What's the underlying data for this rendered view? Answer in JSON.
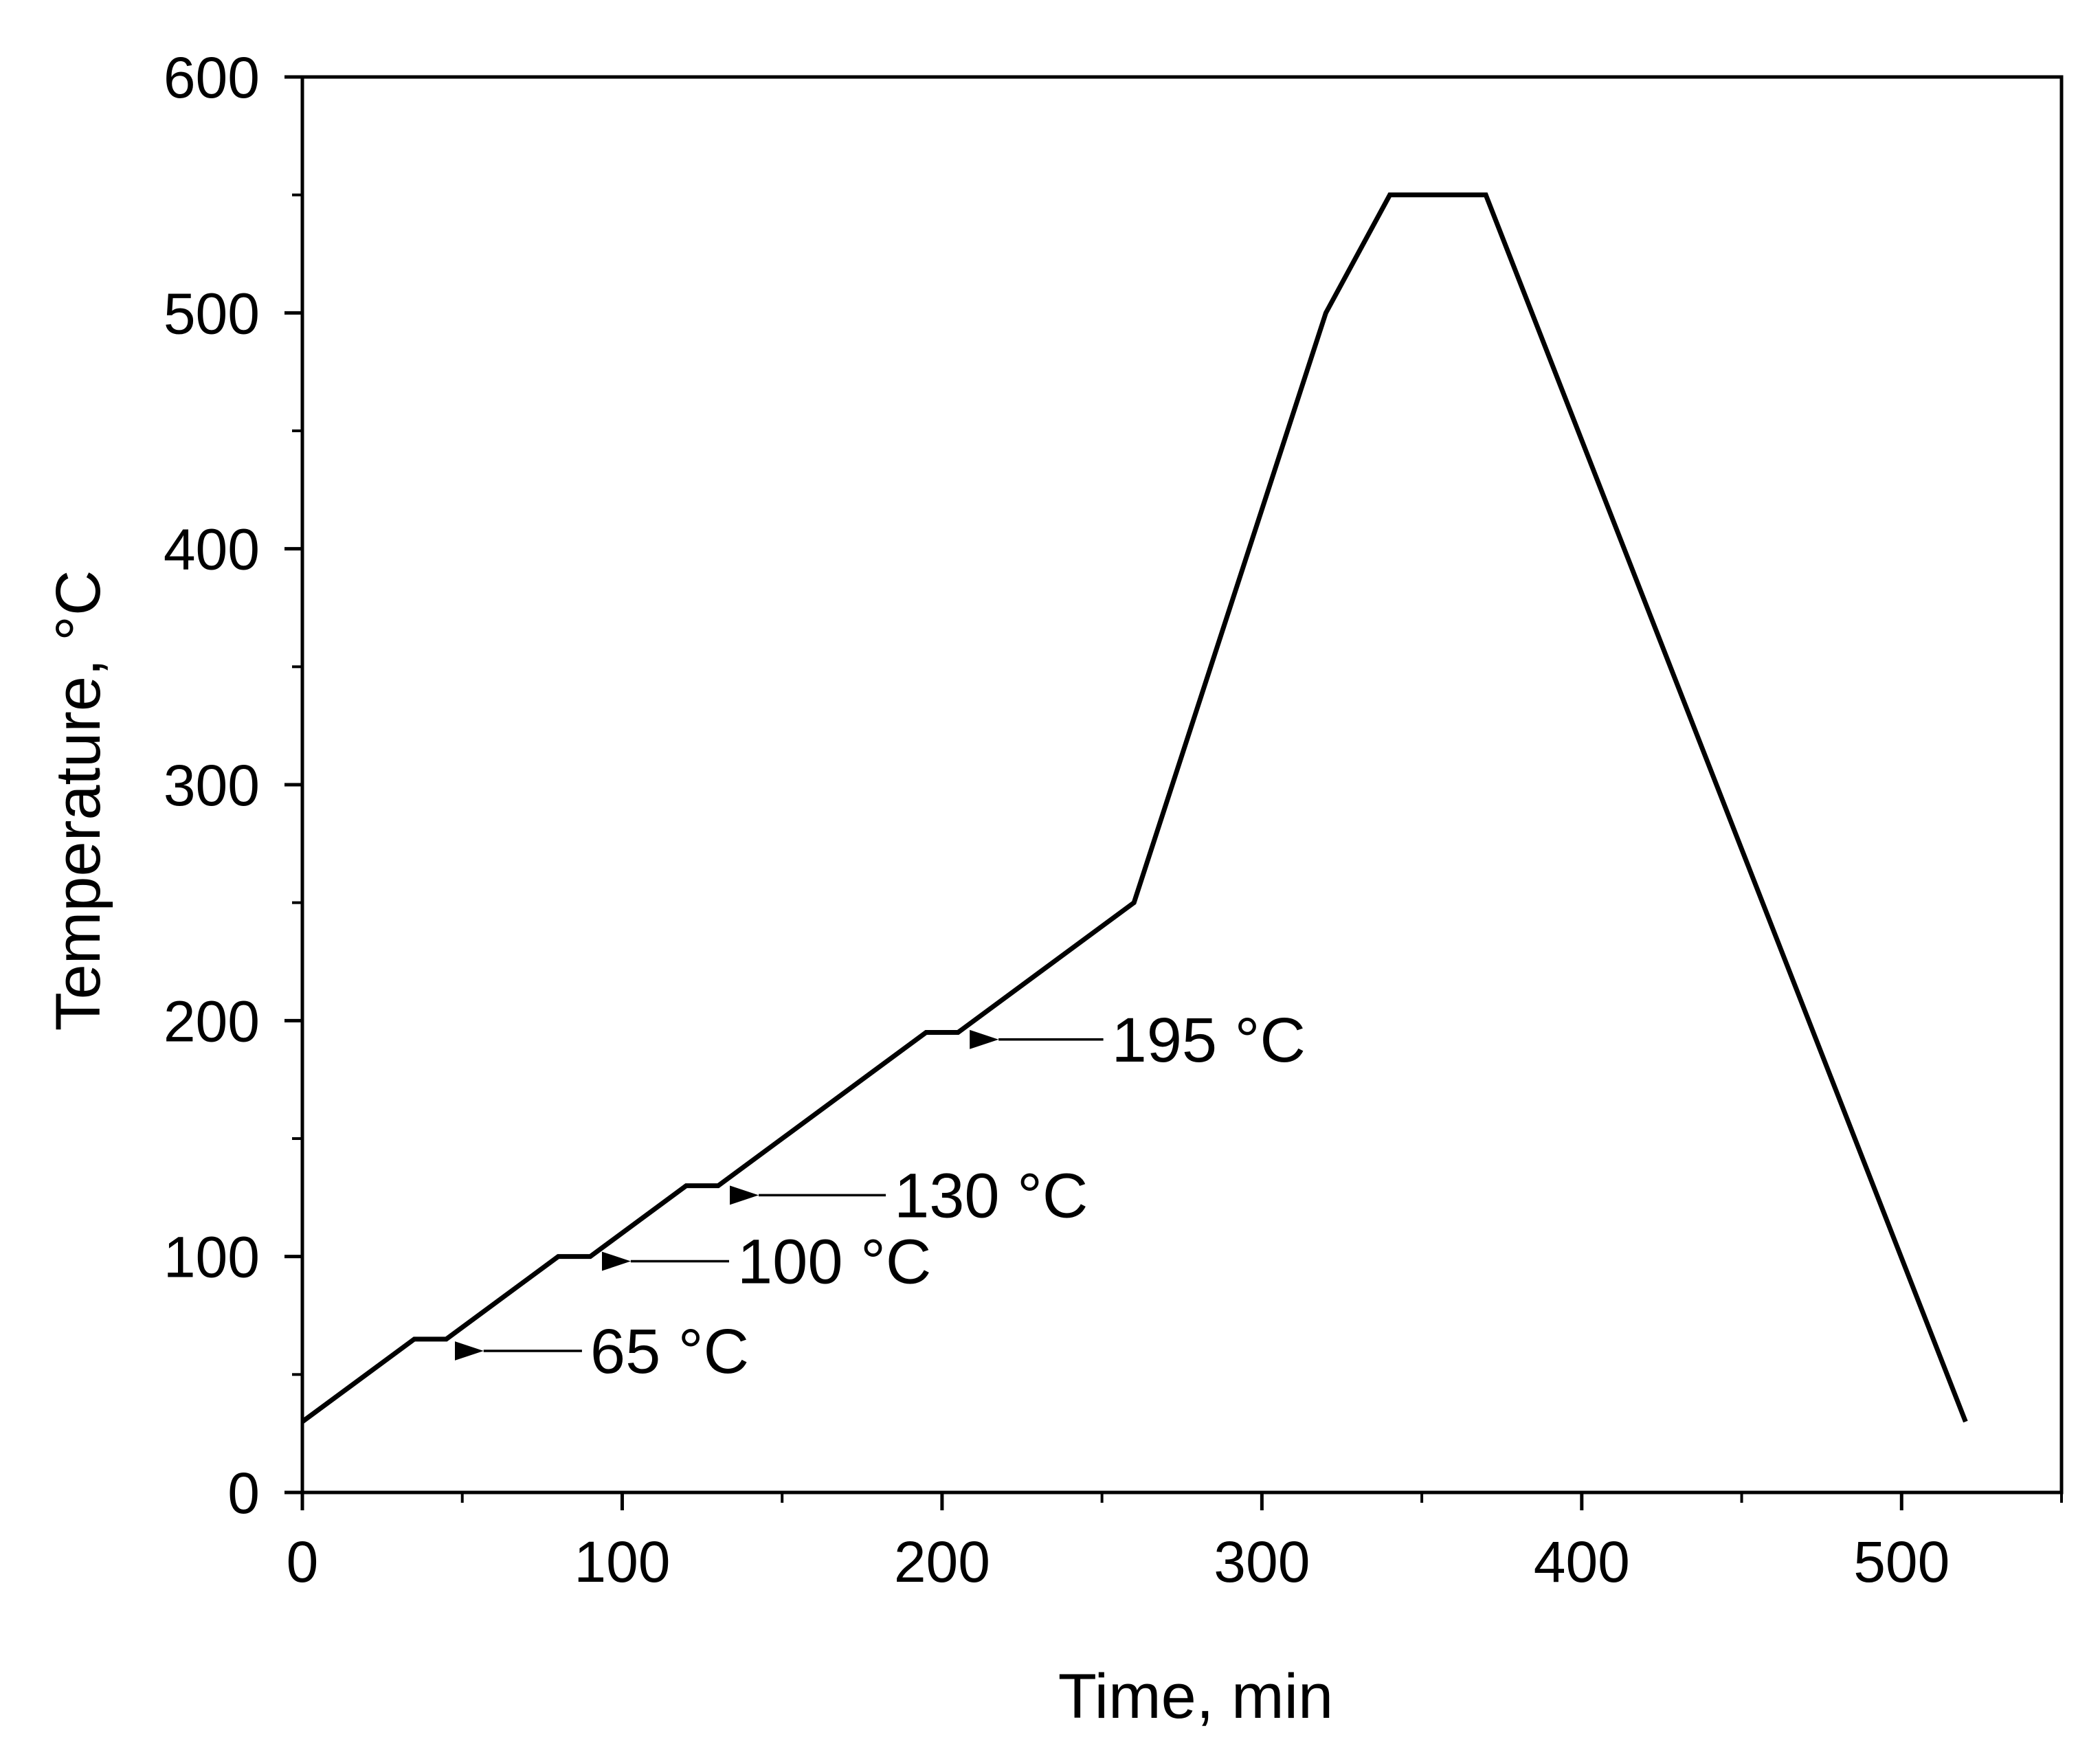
{
  "chart_data": {
    "type": "line",
    "title": "",
    "xlabel": "Time, min",
    "ylabel": "Temperature, °C",
    "xlim": [
      0,
      550
    ],
    "ylim": [
      0,
      600
    ],
    "x_ticks": [
      0,
      100,
      200,
      300,
      400,
      500
    ],
    "x_tick_labels": [
      "0",
      "100",
      "200",
      "300",
      "400",
      "500"
    ],
    "x_minor_ticks": [
      50,
      150,
      250,
      350,
      450,
      550
    ],
    "y_ticks": [
      0,
      100,
      200,
      300,
      400,
      500,
      600
    ],
    "y_tick_labels": [
      "0",
      "100",
      "200",
      "300",
      "400",
      "500",
      "600"
    ],
    "y_minor_ticks": [
      50,
      150,
      250,
      350,
      450,
      550
    ],
    "grid": false,
    "series": [
      {
        "name": "Temperature profile",
        "color": "#000000",
        "x": [
          0,
          35,
          45,
          80,
          90,
          120,
          130,
          195,
          205,
          260,
          320,
          340,
          370,
          520
        ],
        "y": [
          30,
          65,
          65,
          100,
          100,
          130,
          130,
          195,
          195,
          250,
          500,
          550,
          550,
          30
        ]
      }
    ],
    "annotations": [
      {
        "label": "65 °C",
        "arrow_target": [
          47,
          60
        ],
        "text_anchor": [
          90,
          60
        ]
      },
      {
        "label": "100 °C",
        "arrow_target": [
          93,
          98
        ],
        "text_anchor": [
          136,
          98
        ]
      },
      {
        "label": "130 °C",
        "arrow_target": [
          133,
          126
        ],
        "text_anchor": [
          185,
          126
        ]
      },
      {
        "label": "195 °C",
        "arrow_target": [
          208,
          192
        ],
        "text_anchor": [
          253,
          192
        ]
      }
    ]
  }
}
